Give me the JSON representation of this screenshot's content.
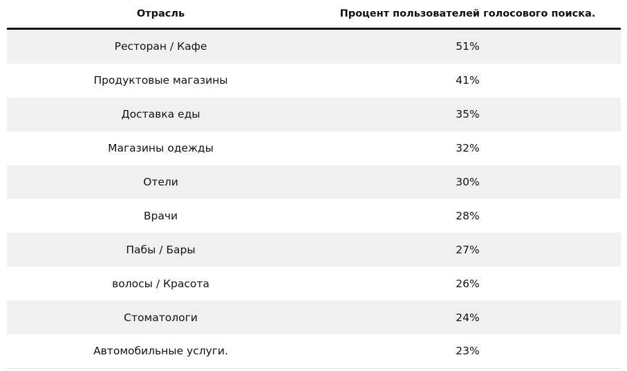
{
  "table": {
    "headers": {
      "industry": "Отрасль",
      "percent": "Процент пользователей голосового поиска."
    },
    "rows": [
      {
        "industry": "Ресторан / Кафе",
        "percent": "51%"
      },
      {
        "industry": "Продуктовые магазины",
        "percent": "41%"
      },
      {
        "industry": "Доставка еды",
        "percent": "35%"
      },
      {
        "industry": "Магазины одежды",
        "percent": "32%"
      },
      {
        "industry": "Отели",
        "percent": "30%"
      },
      {
        "industry": "Врачи",
        "percent": "28%"
      },
      {
        "industry": "Пабы / Бары",
        "percent": "27%"
      },
      {
        "industry": "волосы / Красота",
        "percent": "26%"
      },
      {
        "industry": "Стоматологи",
        "percent": "24%"
      },
      {
        "industry": "Автомобильные услуги.",
        "percent": "23%"
      }
    ]
  }
}
